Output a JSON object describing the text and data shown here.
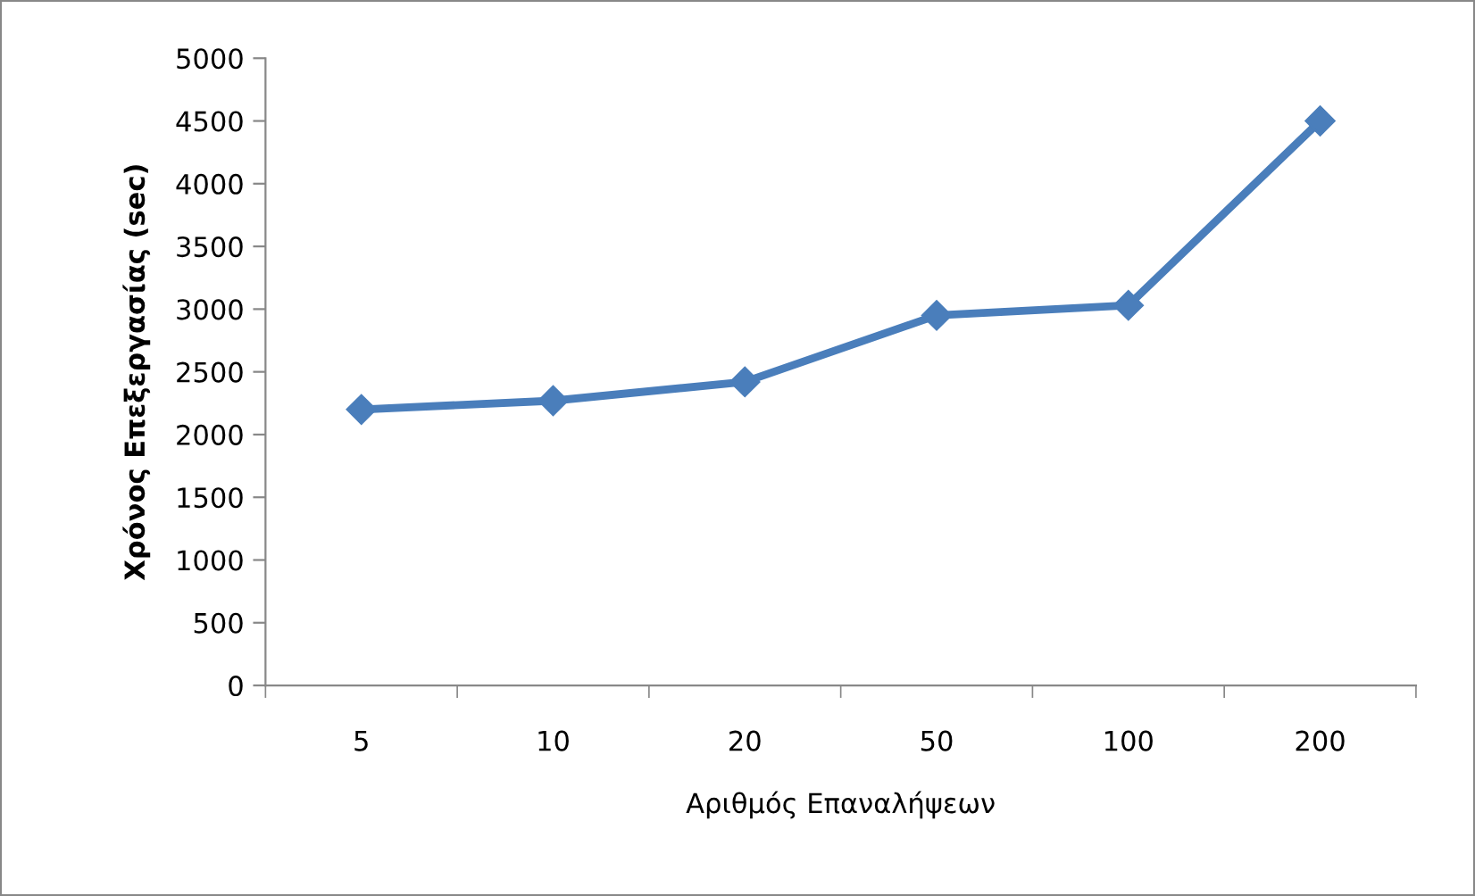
{
  "chart_data": {
    "type": "line",
    "xlabel": "Αριθμός Επαναλήψεων",
    "ylabel": "Χρόνος Επεξεργασίας (sec)",
    "categories": [
      "5",
      "10",
      "20",
      "50",
      "100",
      "200"
    ],
    "series": [
      {
        "color": "#4a7ebb",
        "values": [
          2200,
          2270,
          2420,
          2950,
          3030,
          4500
        ]
      }
    ],
    "ylim": [
      0,
      5000
    ],
    "yticks": [
      0,
      500,
      1000,
      1500,
      2000,
      2500,
      3000,
      3500,
      4000,
      4500,
      5000
    ],
    "grid": false,
    "marker": "diamond",
    "line_style": "solid"
  }
}
